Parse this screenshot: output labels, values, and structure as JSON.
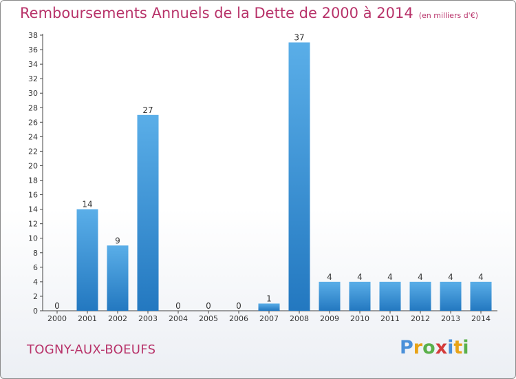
{
  "header": {
    "title": "Remboursements Annuels de la Dette de 2000 à 2014",
    "unit_note": "(en milliers d'€)"
  },
  "footer": {
    "commune": "TOGNY-AUX-BOEUFS",
    "brand_letters": [
      "P",
      "r",
      "o",
      "x",
      "i",
      "t",
      "i"
    ],
    "brand_colors": [
      "#4a90d9",
      "#e8a317",
      "#5ab04a",
      "#d43b3b",
      "#4a90d9",
      "#e8a317",
      "#5ab04a"
    ]
  },
  "chart_data": {
    "type": "bar",
    "title": "Remboursements Annuels de la Dette de 2000 à 2014",
    "xlabel": "",
    "ylabel": "",
    "categories": [
      "2000",
      "2001",
      "2002",
      "2003",
      "2004",
      "2005",
      "2006",
      "2007",
      "2008",
      "2009",
      "2010",
      "2011",
      "2012",
      "2013",
      "2014"
    ],
    "values": [
      0,
      14,
      9,
      27,
      0,
      0,
      0,
      1,
      37,
      4,
      4,
      4,
      4,
      4,
      4
    ],
    "ylim": [
      0,
      38
    ],
    "yticks": [
      0,
      2,
      4,
      6,
      8,
      10,
      12,
      14,
      16,
      18,
      20,
      22,
      24,
      26,
      28,
      30,
      32,
      34,
      36,
      38
    ],
    "grid": false,
    "bar_color_top": "#5aaee8",
    "bar_color_bottom": "#2378c0"
  }
}
